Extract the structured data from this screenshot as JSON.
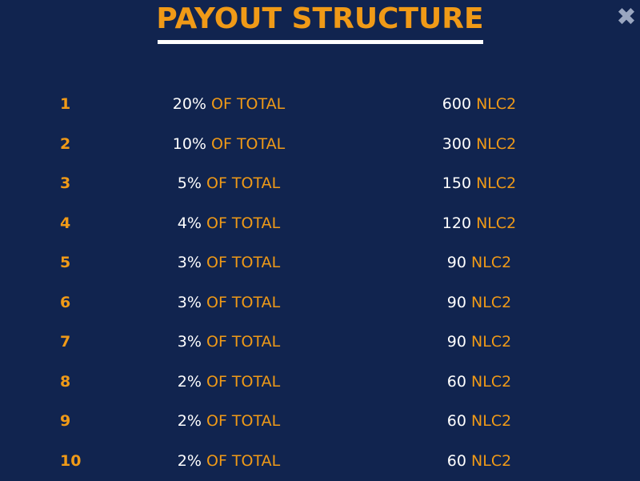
{
  "title": "PAYOUT STRUCTURE",
  "close_symbol": "✖",
  "colors": {
    "background": "#11244f",
    "accent": "#f09a17",
    "text": "#ffffff",
    "close_icon": "#9aa6c0"
  },
  "rows": [
    {
      "rank": "1",
      "percent": "20%",
      "percent_suffix": "OF TOTAL",
      "amount": "600",
      "currency": "NLC2"
    },
    {
      "rank": "2",
      "percent": "10%",
      "percent_suffix": "OF TOTAL",
      "amount": "300",
      "currency": "NLC2"
    },
    {
      "rank": "3",
      "percent": "5%",
      "percent_suffix": "OF TOTAL",
      "amount": "150",
      "currency": "NLC2"
    },
    {
      "rank": "4",
      "percent": "4%",
      "percent_suffix": "OF TOTAL",
      "amount": "120",
      "currency": "NLC2"
    },
    {
      "rank": "5",
      "percent": "3%",
      "percent_suffix": "OF TOTAL",
      "amount": "90",
      "currency": "NLC2"
    },
    {
      "rank": "6",
      "percent": "3%",
      "percent_suffix": "OF TOTAL",
      "amount": "90",
      "currency": "NLC2"
    },
    {
      "rank": "7",
      "percent": "3%",
      "percent_suffix": "OF TOTAL",
      "amount": "90",
      "currency": "NLC2"
    },
    {
      "rank": "8",
      "percent": "2%",
      "percent_suffix": "OF TOTAL",
      "amount": "60",
      "currency": "NLC2"
    },
    {
      "rank": "9",
      "percent": "2%",
      "percent_suffix": "OF TOTAL",
      "amount": "60",
      "currency": "NLC2"
    },
    {
      "rank": "10",
      "percent": "2%",
      "percent_suffix": "OF TOTAL",
      "amount": "60",
      "currency": "NLC2"
    }
  ]
}
